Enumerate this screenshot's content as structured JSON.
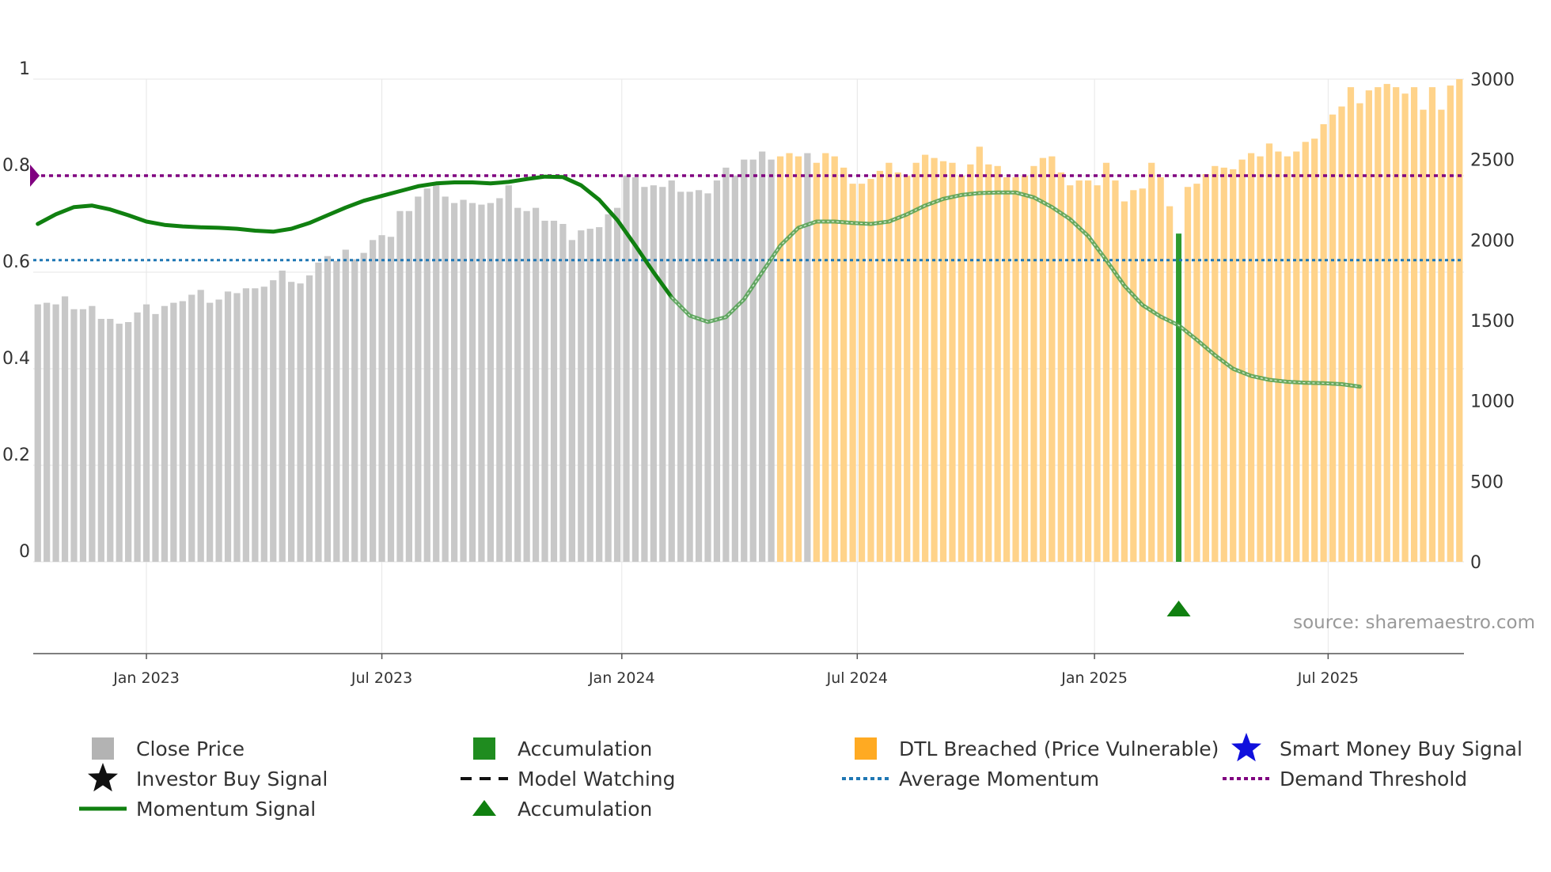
{
  "chart_data": {
    "type": "bar",
    "source": "source: sharemaestro.com",
    "y_left": {
      "range": [
        0,
        1
      ],
      "ticks": [
        "0",
        "0.2",
        "0.4",
        "0.6",
        "0.8",
        "1"
      ],
      "tick_values": [
        0,
        0.2,
        0.4,
        0.6,
        0.8,
        1
      ]
    },
    "y_right": {
      "range": [
        0,
        3000
      ],
      "ticks": [
        "0",
        "500",
        "1000",
        "1500",
        "2000",
        "2500",
        "3000"
      ],
      "tick_values": [
        0,
        500,
        1000,
        1500,
        2000,
        2500,
        3000
      ]
    },
    "x_ticks": [
      {
        "label": "Jan 2023",
        "week": 12
      },
      {
        "label": "Jul 2023",
        "week": 38
      },
      {
        "label": "Jan 2024",
        "week": 64.5
      },
      {
        "label": "Jul 2024",
        "week": 90.5
      },
      {
        "label": "Jan 2025",
        "week": 116.7
      },
      {
        "label": "Jul 2025",
        "week": 142.5
      }
    ],
    "close_price": [
      1600,
      1610,
      1600,
      1650,
      1570,
      1570,
      1590,
      1510,
      1510,
      1480,
      1490,
      1550,
      1600,
      1540,
      1590,
      1610,
      1620,
      1660,
      1690,
      1610,
      1630,
      1680,
      1670,
      1700,
      1700,
      1710,
      1750,
      1810,
      1740,
      1730,
      1780,
      1860,
      1900,
      1870,
      1940,
      1880,
      1920,
      2000,
      2030,
      2020,
      2180,
      2180,
      2270,
      2320,
      2340,
      2270,
      2230,
      2250,
      2230,
      2220,
      2230,
      2260,
      2340,
      2200,
      2180,
      2200,
      2120,
      2120,
      2100,
      2000,
      2060,
      2070,
      2080,
      2160,
      2200,
      2400,
      2390,
      2330,
      2340,
      2330,
      2370,
      2300,
      2300,
      2310,
      2290,
      2370,
      2450,
      2400,
      2500,
      2500,
      2550,
      2500,
      2520,
      2540,
      2520,
      2540,
      2480,
      2540,
      2520,
      2450,
      2350,
      2350,
      2380,
      2430,
      2480,
      2420,
      2400,
      2480,
      2530,
      2510,
      2490,
      2480,
      2400,
      2470,
      2580,
      2470,
      2460,
      2390,
      2390,
      2400,
      2460,
      2510,
      2520,
      2420,
      2340,
      2370,
      2370,
      2340,
      2480,
      2370,
      2240,
      2310,
      2320,
      2480,
      2390,
      2210,
      2300,
      2330,
      2350,
      2410,
      2460,
      2450,
      2440,
      2500,
      2540,
      2520,
      2600,
      2550,
      2520,
      2550,
      2610,
      2630,
      2720,
      2780,
      2830,
      2950,
      2850,
      2930,
      2950,
      2970,
      2950,
      2910,
      2950,
      2810,
      2950,
      2810,
      2960,
      3000
    ],
    "dtl_breached_weeks": [
      82,
      83,
      84,
      86,
      87,
      88,
      89,
      90,
      91,
      92,
      93,
      94,
      95,
      96,
      97,
      98,
      99,
      100,
      101,
      102,
      103,
      104,
      105,
      106,
      107,
      108,
      109,
      110,
      111,
      112,
      113,
      114,
      115,
      116,
      117,
      118,
      119,
      120,
      121,
      122,
      123,
      124,
      125,
      126,
      127,
      128,
      129,
      130,
      131,
      132,
      133,
      134,
      135,
      136,
      137,
      138,
      139,
      140,
      141,
      142,
      143,
      144,
      145,
      146,
      147,
      148,
      149,
      150,
      151,
      152,
      153,
      154,
      155,
      156,
      157
    ],
    "accumulation_weeks": [
      126
    ],
    "accumulation_markers": [
      126
    ],
    "momentum_signal": [
      [
        0,
        0.7
      ],
      [
        2,
        0.72
      ],
      [
        4,
        0.735
      ],
      [
        6,
        0.738
      ],
      [
        8,
        0.73
      ],
      [
        10,
        0.718
      ],
      [
        12,
        0.705
      ],
      [
        14,
        0.698
      ],
      [
        16,
        0.695
      ],
      [
        18,
        0.693
      ],
      [
        20,
        0.692
      ],
      [
        22,
        0.69
      ],
      [
        24,
        0.686
      ],
      [
        26,
        0.684
      ],
      [
        28,
        0.69
      ],
      [
        30,
        0.702
      ],
      [
        32,
        0.718
      ],
      [
        34,
        0.734
      ],
      [
        36,
        0.748
      ],
      [
        38,
        0.758
      ],
      [
        40,
        0.768
      ],
      [
        42,
        0.778
      ],
      [
        44,
        0.784
      ],
      [
        46,
        0.786
      ],
      [
        48,
        0.786
      ],
      [
        50,
        0.784
      ],
      [
        52,
        0.787
      ],
      [
        54,
        0.793
      ],
      [
        56,
        0.798
      ],
      [
        58,
        0.797
      ],
      [
        60,
        0.78
      ],
      [
        62,
        0.75
      ],
      [
        64,
        0.708
      ],
      [
        66,
        0.655
      ],
      [
        68,
        0.6
      ],
      [
        70,
        0.548
      ],
      [
        72,
        0.51
      ],
      [
        74,
        0.497
      ],
      [
        76,
        0.507
      ],
      [
        78,
        0.544
      ],
      [
        80,
        0.6
      ],
      [
        82,
        0.655
      ],
      [
        84,
        0.692
      ],
      [
        86,
        0.705
      ],
      [
        88,
        0.705
      ],
      [
        90,
        0.702
      ],
      [
        92,
        0.7
      ],
      [
        94,
        0.705
      ],
      [
        96,
        0.72
      ],
      [
        98,
        0.738
      ],
      [
        100,
        0.752
      ],
      [
        102,
        0.76
      ],
      [
        104,
        0.764
      ],
      [
        106,
        0.765
      ],
      [
        108,
        0.765
      ],
      [
        110,
        0.755
      ],
      [
        112,
        0.735
      ],
      [
        114,
        0.71
      ],
      [
        116,
        0.675
      ],
      [
        118,
        0.625
      ],
      [
        120,
        0.572
      ],
      [
        122,
        0.532
      ],
      [
        124,
        0.508
      ],
      [
        126,
        0.49
      ],
      [
        128,
        0.46
      ],
      [
        130,
        0.428
      ],
      [
        132,
        0.4
      ],
      [
        134,
        0.385
      ],
      [
        136,
        0.377
      ],
      [
        138,
        0.373
      ],
      [
        140,
        0.371
      ],
      [
        142,
        0.37
      ],
      [
        144,
        0.368
      ],
      [
        146,
        0.363
      ]
    ],
    "average_momentum": 0.625,
    "demand_threshold": 0.8,
    "legend": [
      {
        "label": "Close Price",
        "symbol": "gray-square",
        "color": "#b3b3b3"
      },
      {
        "label": "Accumulation",
        "symbol": "green-square",
        "color": "#1f8c1f"
      },
      {
        "label": "DTL Breached (Price Vulnerable)",
        "symbol": "orange-square",
        "color": "#ffaa22"
      },
      {
        "label": "Smart Money Buy Signal",
        "symbol": "blue-star",
        "color": "#1010dd"
      },
      {
        "label": "Investor Buy Signal",
        "symbol": "black-star",
        "color": "#111111"
      },
      {
        "label": "Model Watching",
        "symbol": "black-dashed-line",
        "color": "#111111"
      },
      {
        "label": "Average Momentum",
        "symbol": "blue-dotted-line",
        "color": "#1f77b4"
      },
      {
        "label": "Demand Threshold",
        "symbol": "purple-dotted-line",
        "color": "#800080"
      },
      {
        "label": "Momentum Signal",
        "symbol": "green-line",
        "color": "#108010"
      },
      {
        "label": "Accumulation",
        "symbol": "green-triangle",
        "color": "#108010"
      }
    ],
    "colors": {
      "close_price": "#c8c8c8",
      "dtl": "#ffd38a",
      "accumulation": "#2e9a2e",
      "momentum": "#108010",
      "momentum_faded": "#4f9f4f",
      "average": "#1f77b4",
      "demand": "#800080",
      "grid": "#e6e6e6",
      "axis": "#555555"
    }
  }
}
